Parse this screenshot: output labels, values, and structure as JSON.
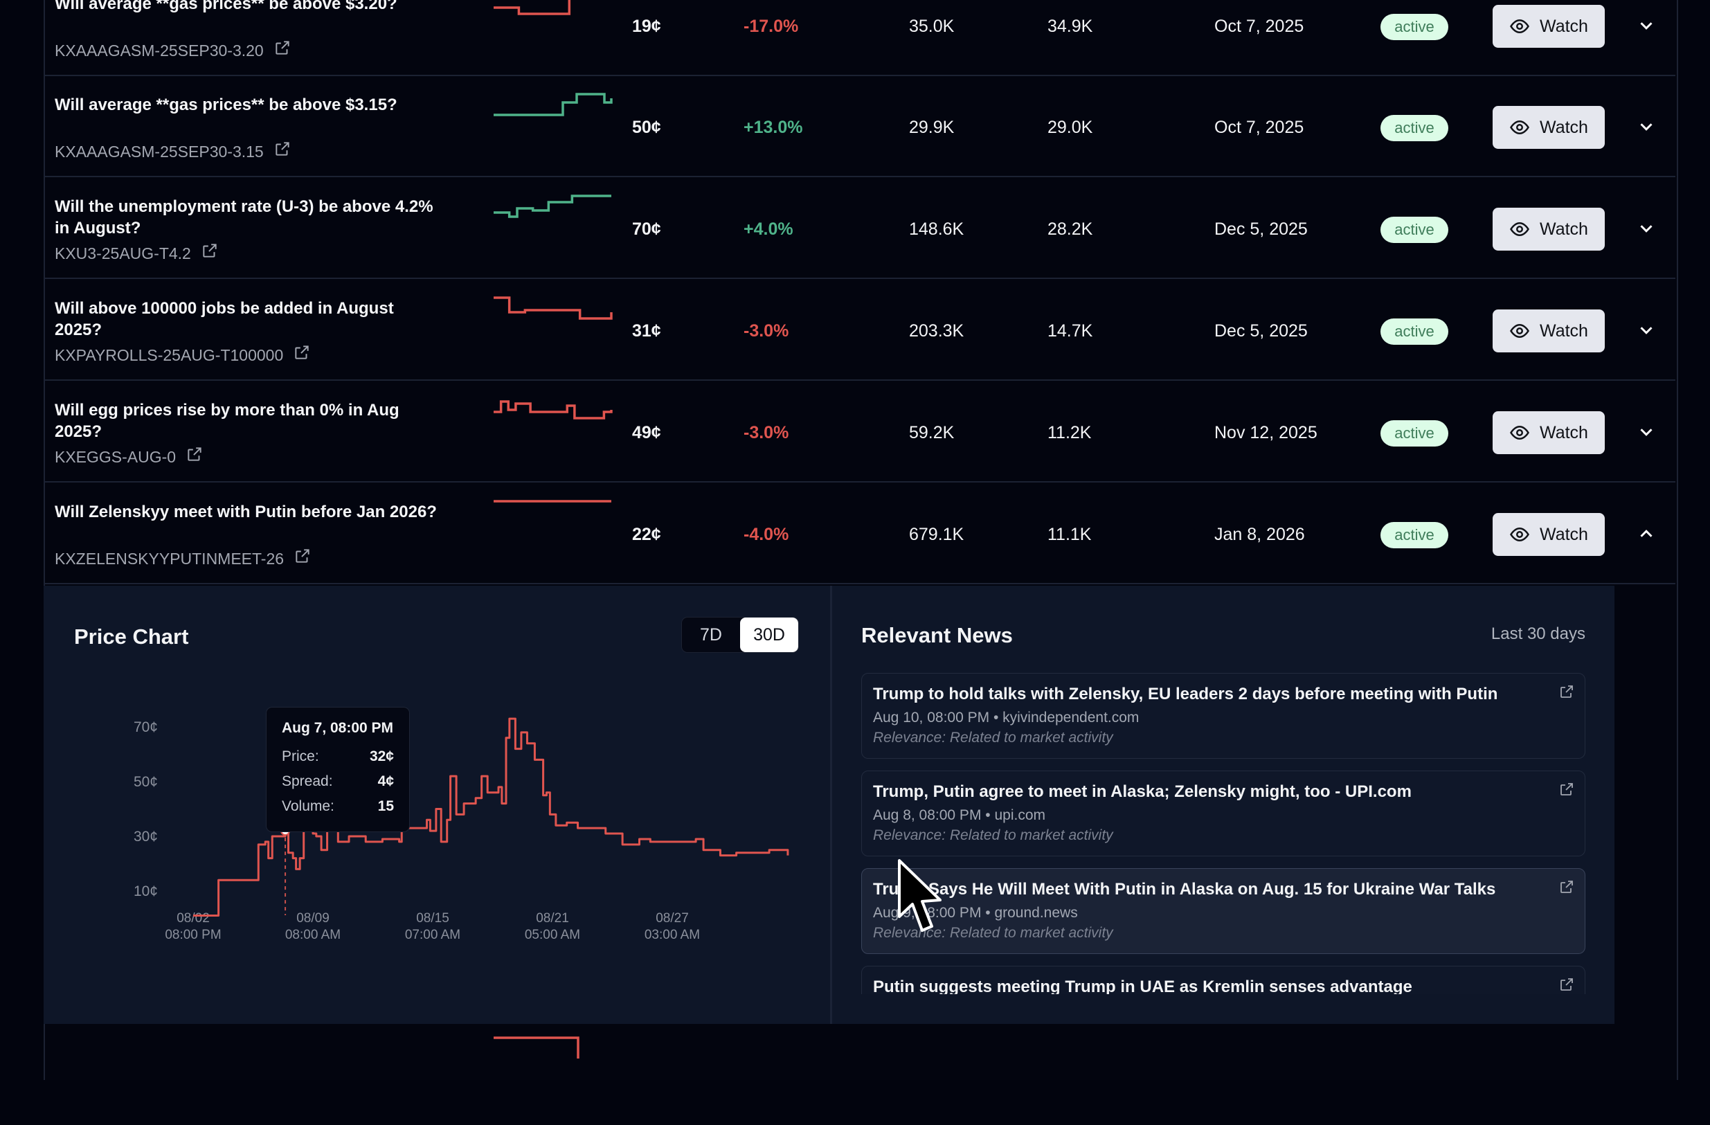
{
  "colors": {
    "up": "#4fb38a",
    "down": "#e0554f",
    "badge_bg": "#dcfce7",
    "badge_text": "#3f7d5a"
  },
  "markets": [
    {
      "title": "Will average **gas prices** be above $3.20?",
      "ticker": "KXAAAGASM-25SEP30-3.20",
      "price": "19¢",
      "change": "-17.0%",
      "trend": "down",
      "volume": "35.0K",
      "liquidity": "34.9K",
      "date": "Oct 7, 2025",
      "status": "active",
      "watch_label": "Watch",
      "expanded": false,
      "sparkline": [
        0.3,
        0.3,
        0.3,
        0,
        0,
        0,
        0,
        0,
        0,
        0.8,
        1,
        1,
        1,
        1,
        1
      ]
    },
    {
      "title": "Will average **gas prices** be above $3.15?",
      "ticker": "KXAAAGASM-25SEP30-3.15",
      "price": "50¢",
      "change": "+13.0%",
      "trend": "up",
      "volume": "29.9K",
      "liquidity": "29.0K",
      "date": "Oct 7, 2025",
      "status": "active",
      "watch_label": "Watch",
      "expanded": false,
      "sparkline": [
        0,
        0,
        0,
        0,
        0,
        0,
        0,
        0,
        0,
        0,
        0.6,
        0.6,
        1,
        1,
        1,
        1,
        0.6,
        0.8
      ]
    },
    {
      "title": "Will the unemployment rate (U-3) be above 4.2% in August?",
      "ticker": "KXU3-25AUG-T4.2",
      "price": "70¢",
      "change": "+4.0%",
      "trend": "up",
      "volume": "148.6K",
      "liquidity": "28.2K",
      "date": "Dec 5, 2025",
      "status": "active",
      "watch_label": "Watch",
      "expanded": false,
      "sparkline": [
        0.2,
        0.2,
        0,
        0.4,
        0.4,
        0.3,
        0.3,
        0.7,
        0.7,
        0.7,
        1,
        1,
        1,
        1,
        1,
        1
      ]
    },
    {
      "title": "Will above 100000 jobs be added in August 2025?",
      "ticker": "KXPAYROLLS-25AUG-T100000",
      "price": "31¢",
      "change": "-3.0%",
      "trend": "down",
      "volume": "203.3K",
      "liquidity": "14.7K",
      "date": "Dec 5, 2025",
      "status": "active",
      "watch_label": "Watch",
      "expanded": false,
      "sparkline": [
        1,
        1,
        0.3,
        0.3,
        0.4,
        0.4,
        0.4,
        0.4,
        0.4,
        0.4,
        0.4,
        0,
        0,
        0,
        0,
        0.3
      ]
    },
    {
      "title": "Will egg prices rise by more than 0% in Aug 2025?",
      "ticker": "KXEGGS-AUG-0",
      "price": "49¢",
      "change": "-3.0%",
      "trend": "down",
      "volume": "59.2K",
      "liquidity": "11.2K",
      "date": "Nov 12, 2025",
      "status": "active",
      "watch_label": "Watch",
      "expanded": false,
      "sparkline": [
        0.4,
        0.9,
        0.5,
        0.8,
        0.8,
        0.4,
        0.4,
        0.4,
        0.4,
        0.4,
        0.7,
        0.1,
        0.1,
        0.1,
        0.1,
        0.4,
        0.5
      ]
    },
    {
      "title": "Will Zelenskyy meet with Putin before Jan 2026?",
      "ticker": "KXZELENSKYYPUTINMEET-26",
      "price": "22¢",
      "change": "-4.0%",
      "trend": "down",
      "volume": "679.1K",
      "liquidity": "11.1K",
      "date": "Jan 8, 2026",
      "status": "active",
      "watch_label": "Watch",
      "expanded": true,
      "sparkline": [
        1,
        1,
        1,
        1,
        1,
        1,
        1,
        1
      ]
    }
  ],
  "partial_row": {
    "trend": "down",
    "sparkline": [
      1,
      1,
      1,
      1,
      1,
      1,
      1,
      1,
      1,
      1,
      0
    ]
  },
  "price_chart": {
    "title": "Price Chart",
    "ranges": [
      "7D",
      "30D"
    ],
    "selected_range": "30D",
    "tooltip": {
      "date": "Aug 7, 08:00 PM",
      "price_label": "Price:",
      "price": "32¢",
      "spread_label": "Spread:",
      "spread": "4¢",
      "volume_label": "Volume:",
      "volume": "15"
    }
  },
  "chart_data": {
    "type": "line",
    "title": "",
    "xlabel": "",
    "ylabel": "",
    "y_unit": "¢",
    "yticks": [
      10,
      30,
      50,
      70
    ],
    "ytick_labels": [
      "10¢",
      "30¢",
      "50¢",
      "70¢"
    ],
    "xticks": [
      {
        "t": "2025-08-02T20:00",
        "l1": "08/02",
        "l2": "08:00 PM"
      },
      {
        "t": "2025-08-09T08:00",
        "l1": "08/09",
        "l2": "08:00 AM"
      },
      {
        "t": "2025-08-15T07:00",
        "l1": "08/15",
        "l2": "07:00 AM"
      },
      {
        "t": "2025-08-21T05:00",
        "l1": "08/21",
        "l2": "05:00 AM"
      },
      {
        "t": "2025-08-27T03:00",
        "l1": "08/27",
        "l2": "03:00 AM"
      }
    ],
    "grid": false,
    "color": "#e0554f",
    "hover_point": {
      "t": "2025-08-07T20:00",
      "y": 32
    },
    "points": [
      [
        "2025-08-02T20:00",
        1
      ],
      [
        "2025-08-04T05:00",
        1
      ],
      [
        "2025-08-04T05:01",
        14
      ],
      [
        "2025-08-06T09:00",
        14
      ],
      [
        "2025-08-06T09:01",
        27
      ],
      [
        "2025-08-06T18:00",
        28
      ],
      [
        "2025-08-06T22:00",
        22
      ],
      [
        "2025-08-07T03:00",
        30
      ],
      [
        "2025-08-07T20:00",
        32
      ],
      [
        "2025-08-08T00:00",
        24
      ],
      [
        "2025-08-08T06:00",
        22
      ],
      [
        "2025-08-08T10:00",
        18
      ],
      [
        "2025-08-08T15:00",
        22
      ],
      [
        "2025-08-08T20:00",
        34
      ],
      [
        "2025-08-09T08:00",
        31
      ],
      [
        "2025-08-09T12:00",
        30
      ],
      [
        "2025-08-09T18:00",
        25
      ],
      [
        "2025-08-10T01:00",
        32
      ],
      [
        "2025-08-10T14:00",
        28
      ],
      [
        "2025-08-11T03:00",
        30
      ],
      [
        "2025-08-11T23:00",
        28
      ],
      [
        "2025-08-12T19:00",
        29
      ],
      [
        "2025-08-13T15:00",
        28
      ],
      [
        "2025-08-13T18:00",
        33
      ],
      [
        "2025-08-14T11:00",
        33
      ],
      [
        "2025-08-15T00:00",
        36
      ],
      [
        "2025-08-15T04:00",
        32
      ],
      [
        "2025-08-15T11:00",
        40
      ],
      [
        "2025-08-15T17:00",
        28
      ],
      [
        "2025-08-16T00:00",
        36
      ],
      [
        "2025-08-16T04:00",
        52
      ],
      [
        "2025-08-16T11:00",
        38
      ],
      [
        "2025-08-16T20:00",
        42
      ],
      [
        "2025-08-17T10:00",
        44
      ],
      [
        "2025-08-17T17:00",
        52
      ],
      [
        "2025-08-18T00:00",
        46
      ],
      [
        "2025-08-18T13:00",
        48
      ],
      [
        "2025-08-18T17:00",
        42
      ],
      [
        "2025-08-18T22:00",
        66
      ],
      [
        "2025-08-19T02:00",
        73
      ],
      [
        "2025-08-19T09:00",
        62
      ],
      [
        "2025-08-19T16:00",
        68
      ],
      [
        "2025-08-19T23:00",
        64
      ],
      [
        "2025-08-20T08:00",
        58
      ],
      [
        "2025-08-20T18:00",
        45
      ],
      [
        "2025-08-20T22:00",
        46
      ],
      [
        "2025-08-21T02:00",
        38
      ],
      [
        "2025-08-21T09:00",
        34
      ],
      [
        "2025-08-21T22:00",
        35
      ],
      [
        "2025-08-22T11:00",
        33
      ],
      [
        "2025-08-23T07:00",
        33
      ],
      [
        "2025-08-23T20:00",
        31
      ],
      [
        "2025-08-24T16:00",
        27
      ],
      [
        "2025-08-24T23:00",
        27
      ],
      [
        "2025-08-25T12:00",
        29
      ],
      [
        "2025-08-26T01:00",
        28
      ],
      [
        "2025-08-26T20:00",
        28
      ],
      [
        "2025-08-27T14:00",
        28
      ],
      [
        "2025-08-28T07:00",
        29
      ],
      [
        "2025-08-28T16:00",
        25
      ],
      [
        "2025-08-29T12:00",
        23
      ],
      [
        "2025-08-30T07:00",
        24
      ],
      [
        "2025-08-31T03:00",
        24
      ],
      [
        "2025-08-31T22:00",
        25
      ],
      [
        "2025-09-01T11:00",
        25
      ],
      [
        "2025-09-01T20:00",
        23
      ]
    ]
  },
  "news": {
    "title": "Relevant News",
    "range": "Last 30 days",
    "items": [
      {
        "title": "Trump to hold talks with Zelensky, EU leaders 2 days before meeting with Putin",
        "meta": "Aug 10, 08:00 PM • kyivindependent.com",
        "relevance": "Relevance: Related to market activity"
      },
      {
        "title": "Trump, Putin agree to meet in Alaska; Zelensky might, too - UPI.com",
        "meta": "Aug 8, 08:00 PM • upi.com",
        "relevance": "Relevance: Related to market activity"
      },
      {
        "title": "Trump Says He Will Meet With Putin in Alaska on Aug. 15 for Ukraine War Talks",
        "meta": "Aug 9, 08:00 PM • ground.news",
        "relevance": "Relevance: Related to market activity",
        "hover": true
      },
      {
        "title": "Putin suggests meeting Trump in UAE as Kremlin senses advantage",
        "meta": "",
        "relevance": ""
      }
    ]
  }
}
